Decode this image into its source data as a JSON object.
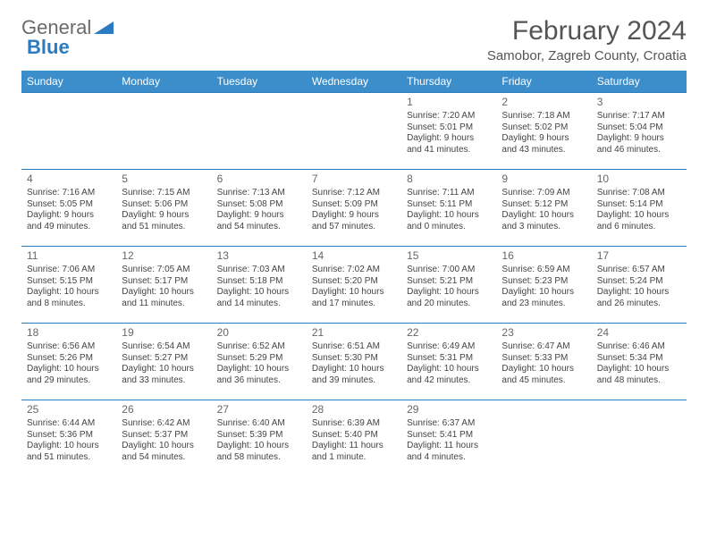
{
  "brand": {
    "part1": "General",
    "part2": "Blue"
  },
  "title": "February 2024",
  "location": "Samobor, Zagreb County, Croatia",
  "weekday_header_bg": "#3c8ecb",
  "border_color": "#2a7bbf",
  "weekdays": [
    "Sunday",
    "Monday",
    "Tuesday",
    "Wednesday",
    "Thursday",
    "Friday",
    "Saturday"
  ],
  "weeks": [
    [
      null,
      null,
      null,
      null,
      {
        "n": "1",
        "sr": "7:20 AM",
        "ss": "5:01 PM",
        "dl": "9 hours and 41 minutes."
      },
      {
        "n": "2",
        "sr": "7:18 AM",
        "ss": "5:02 PM",
        "dl": "9 hours and 43 minutes."
      },
      {
        "n": "3",
        "sr": "7:17 AM",
        "ss": "5:04 PM",
        "dl": "9 hours and 46 minutes."
      }
    ],
    [
      {
        "n": "4",
        "sr": "7:16 AM",
        "ss": "5:05 PM",
        "dl": "9 hours and 49 minutes."
      },
      {
        "n": "5",
        "sr": "7:15 AM",
        "ss": "5:06 PM",
        "dl": "9 hours and 51 minutes."
      },
      {
        "n": "6",
        "sr": "7:13 AM",
        "ss": "5:08 PM",
        "dl": "9 hours and 54 minutes."
      },
      {
        "n": "7",
        "sr": "7:12 AM",
        "ss": "5:09 PM",
        "dl": "9 hours and 57 minutes."
      },
      {
        "n": "8",
        "sr": "7:11 AM",
        "ss": "5:11 PM",
        "dl": "10 hours and 0 minutes."
      },
      {
        "n": "9",
        "sr": "7:09 AM",
        "ss": "5:12 PM",
        "dl": "10 hours and 3 minutes."
      },
      {
        "n": "10",
        "sr": "7:08 AM",
        "ss": "5:14 PM",
        "dl": "10 hours and 6 minutes."
      }
    ],
    [
      {
        "n": "11",
        "sr": "7:06 AM",
        "ss": "5:15 PM",
        "dl": "10 hours and 8 minutes."
      },
      {
        "n": "12",
        "sr": "7:05 AM",
        "ss": "5:17 PM",
        "dl": "10 hours and 11 minutes."
      },
      {
        "n": "13",
        "sr": "7:03 AM",
        "ss": "5:18 PM",
        "dl": "10 hours and 14 minutes."
      },
      {
        "n": "14",
        "sr": "7:02 AM",
        "ss": "5:20 PM",
        "dl": "10 hours and 17 minutes."
      },
      {
        "n": "15",
        "sr": "7:00 AM",
        "ss": "5:21 PM",
        "dl": "10 hours and 20 minutes."
      },
      {
        "n": "16",
        "sr": "6:59 AM",
        "ss": "5:23 PM",
        "dl": "10 hours and 23 minutes."
      },
      {
        "n": "17",
        "sr": "6:57 AM",
        "ss": "5:24 PM",
        "dl": "10 hours and 26 minutes."
      }
    ],
    [
      {
        "n": "18",
        "sr": "6:56 AM",
        "ss": "5:26 PM",
        "dl": "10 hours and 29 minutes."
      },
      {
        "n": "19",
        "sr": "6:54 AM",
        "ss": "5:27 PM",
        "dl": "10 hours and 33 minutes."
      },
      {
        "n": "20",
        "sr": "6:52 AM",
        "ss": "5:29 PM",
        "dl": "10 hours and 36 minutes."
      },
      {
        "n": "21",
        "sr": "6:51 AM",
        "ss": "5:30 PM",
        "dl": "10 hours and 39 minutes."
      },
      {
        "n": "22",
        "sr": "6:49 AM",
        "ss": "5:31 PM",
        "dl": "10 hours and 42 minutes."
      },
      {
        "n": "23",
        "sr": "6:47 AM",
        "ss": "5:33 PM",
        "dl": "10 hours and 45 minutes."
      },
      {
        "n": "24",
        "sr": "6:46 AM",
        "ss": "5:34 PM",
        "dl": "10 hours and 48 minutes."
      }
    ],
    [
      {
        "n": "25",
        "sr": "6:44 AM",
        "ss": "5:36 PM",
        "dl": "10 hours and 51 minutes."
      },
      {
        "n": "26",
        "sr": "6:42 AM",
        "ss": "5:37 PM",
        "dl": "10 hours and 54 minutes."
      },
      {
        "n": "27",
        "sr": "6:40 AM",
        "ss": "5:39 PM",
        "dl": "10 hours and 58 minutes."
      },
      {
        "n": "28",
        "sr": "6:39 AM",
        "ss": "5:40 PM",
        "dl": "11 hours and 1 minute."
      },
      {
        "n": "29",
        "sr": "6:37 AM",
        "ss": "5:41 PM",
        "dl": "11 hours and 4 minutes."
      },
      null,
      null
    ]
  ],
  "labels": {
    "sunrise": "Sunrise: ",
    "sunset": "Sunset: ",
    "daylight": "Daylight: "
  }
}
